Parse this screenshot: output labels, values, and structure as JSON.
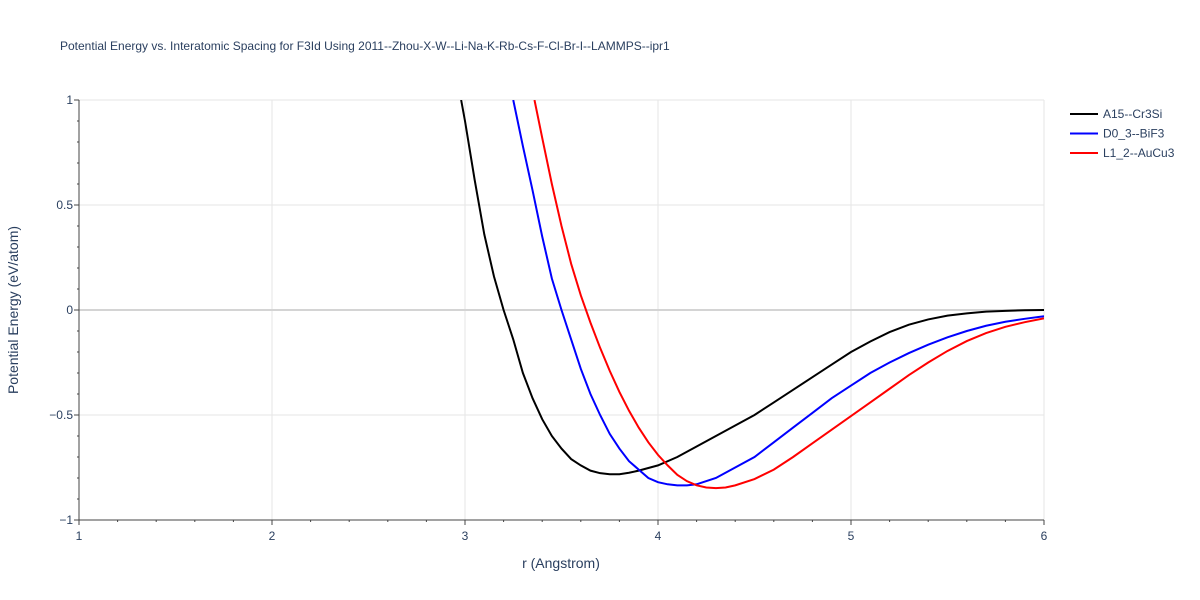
{
  "chart_data": {
    "type": "line",
    "title": "Potential Energy vs. Interatomic Spacing for F3Id Using 2011--Zhou-X-W--Li-Na-K-Rb-Cs-F-Cl-Br-I--LAMMPS--ipr1",
    "xlabel": "r (Angstrom)",
    "ylabel": "Potential Energy (eV/atom)",
    "xlim": [
      1,
      6
    ],
    "ylim": [
      -1,
      1
    ],
    "xticks": [
      1,
      2,
      3,
      4,
      5,
      6
    ],
    "xtick_labels": [
      "1",
      "2",
      "3",
      "4",
      "5",
      "6"
    ],
    "yticks": [
      -1,
      -0.5,
      0,
      0.5,
      1
    ],
    "ytick_labels": [
      "−1",
      "−0.5",
      "0",
      "0.5",
      "1"
    ],
    "grid": true,
    "legend_position": "top-right",
    "series": [
      {
        "name": "A15--Cr3Si",
        "color": "#000000",
        "x": [
          2.98,
          3.0,
          3.05,
          3.1,
          3.15,
          3.2,
          3.25,
          3.3,
          3.35,
          3.4,
          3.45,
          3.5,
          3.55,
          3.6,
          3.65,
          3.7,
          3.75,
          3.8,
          3.85,
          3.9,
          4.0,
          4.1,
          4.2,
          4.3,
          4.4,
          4.5,
          4.6,
          4.7,
          4.8,
          4.9,
          5.0,
          5.1,
          5.2,
          5.3,
          5.4,
          5.5,
          5.6,
          5.7,
          5.8,
          5.9,
          6.0
        ],
        "y": [
          1.0,
          0.9,
          0.62,
          0.36,
          0.16,
          0.0,
          -0.14,
          -0.3,
          -0.42,
          -0.52,
          -0.6,
          -0.66,
          -0.71,
          -0.74,
          -0.765,
          -0.777,
          -0.782,
          -0.782,
          -0.775,
          -0.765,
          -0.74,
          -0.7,
          -0.65,
          -0.6,
          -0.55,
          -0.5,
          -0.44,
          -0.38,
          -0.32,
          -0.26,
          -0.2,
          -0.15,
          -0.105,
          -0.07,
          -0.045,
          -0.027,
          -0.016,
          -0.008,
          -0.004,
          -0.001,
          0.0
        ]
      },
      {
        "name": "D0_3--BiF3",
        "color": "#0000ff",
        "x": [
          3.25,
          3.3,
          3.35,
          3.4,
          3.45,
          3.5,
          3.55,
          3.6,
          3.65,
          3.7,
          3.75,
          3.8,
          3.85,
          3.9,
          3.95,
          4.0,
          4.05,
          4.1,
          4.15,
          4.2,
          4.3,
          4.4,
          4.5,
          4.6,
          4.7,
          4.8,
          4.9,
          5.0,
          5.1,
          5.2,
          5.3,
          5.4,
          5.5,
          5.6,
          5.7,
          5.8,
          5.9,
          6.0
        ],
        "y": [
          1.0,
          0.78,
          0.57,
          0.35,
          0.15,
          0.0,
          -0.14,
          -0.28,
          -0.4,
          -0.5,
          -0.59,
          -0.66,
          -0.72,
          -0.76,
          -0.8,
          -0.82,
          -0.83,
          -0.835,
          -0.835,
          -0.83,
          -0.8,
          -0.75,
          -0.7,
          -0.63,
          -0.56,
          -0.49,
          -0.42,
          -0.36,
          -0.3,
          -0.25,
          -0.205,
          -0.165,
          -0.13,
          -0.1,
          -0.075,
          -0.056,
          -0.042,
          -0.03
        ]
      },
      {
        "name": "L1_2--AuCu3",
        "color": "#ff0000",
        "x": [
          3.36,
          3.4,
          3.45,
          3.5,
          3.55,
          3.6,
          3.65,
          3.7,
          3.75,
          3.8,
          3.85,
          3.9,
          3.95,
          4.0,
          4.05,
          4.1,
          4.15,
          4.2,
          4.25,
          4.3,
          4.35,
          4.4,
          4.5,
          4.6,
          4.7,
          4.8,
          4.9,
          5.0,
          5.1,
          5.2,
          5.3,
          5.4,
          5.5,
          5.6,
          5.7,
          5.8,
          5.9,
          6.0
        ],
        "y": [
          1.0,
          0.82,
          0.6,
          0.4,
          0.22,
          0.07,
          -0.06,
          -0.18,
          -0.29,
          -0.39,
          -0.48,
          -0.56,
          -0.63,
          -0.69,
          -0.74,
          -0.785,
          -0.815,
          -0.835,
          -0.845,
          -0.848,
          -0.845,
          -0.835,
          -0.805,
          -0.76,
          -0.7,
          -0.635,
          -0.57,
          -0.505,
          -0.44,
          -0.375,
          -0.31,
          -0.25,
          -0.195,
          -0.148,
          -0.11,
          -0.08,
          -0.058,
          -0.04
        ]
      }
    ]
  }
}
